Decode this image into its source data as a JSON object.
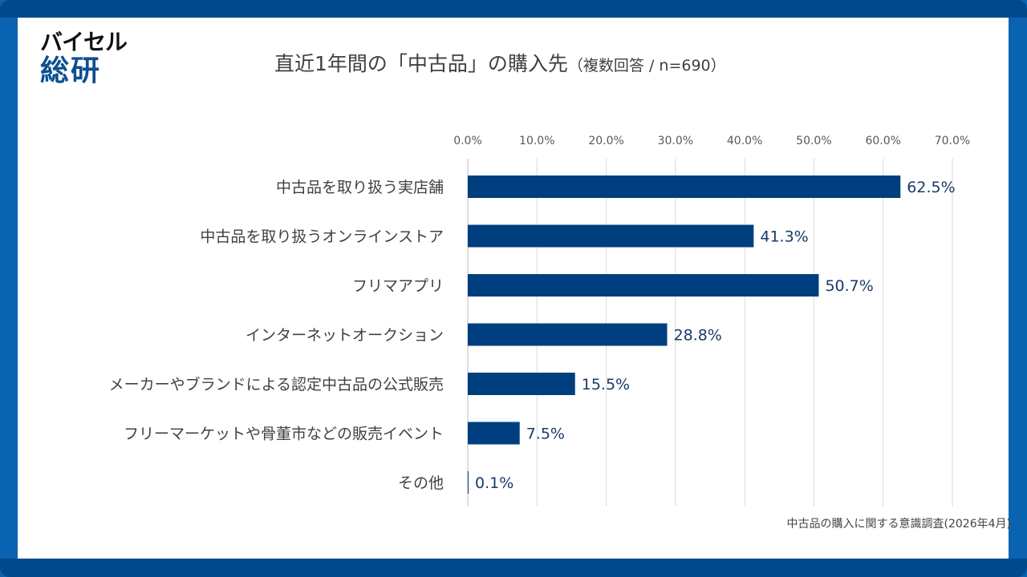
{
  "logo": {
    "line1": "バイセル",
    "line2": "総研"
  },
  "title": {
    "main": "直近1年間の「中古品」の購入先",
    "sub": "（複数回答 / n=690）"
  },
  "footnote": "中古品の購入に関する意識調査(2026年4月)",
  "colors": {
    "bar": "#003f7f",
    "frame": "#004a8c",
    "frame_side": "#0a63b0",
    "label_value": "#1a3a6a"
  },
  "chart_data": {
    "type": "bar",
    "orientation": "horizontal",
    "title": "直近1年間の「中古品」の購入先（複数回答 / n=690）",
    "xlabel": "",
    "ylabel": "",
    "xlim": [
      0,
      70
    ],
    "x_ticks": [
      0,
      10,
      20,
      30,
      40,
      50,
      60,
      70
    ],
    "x_tick_labels": [
      "0.0%",
      "10.0%",
      "20.0%",
      "30.0%",
      "40.0%",
      "50.0%",
      "60.0%",
      "70.0%"
    ],
    "x_axis_position": "top",
    "grid": true,
    "legend": "none",
    "categories": [
      "中古品を取り扱う実店舗",
      "中古品を取り扱うオンラインストア",
      "フリマアプリ",
      "インターネットオークション",
      "メーカーやブランドによる認定中古品の公式販売",
      "フリーマーケットや骨董市などの販売イベント",
      "その他"
    ],
    "values": [
      62.5,
      41.3,
      50.7,
      28.8,
      15.5,
      7.5,
      0.1
    ],
    "value_labels": [
      "62.5%",
      "41.3%",
      "50.7%",
      "28.8%",
      "15.5%",
      "7.5%",
      "0.1%"
    ],
    "unit": "%"
  }
}
